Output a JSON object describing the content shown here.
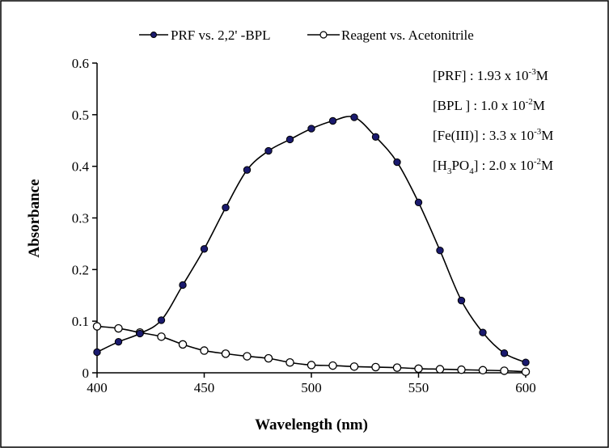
{
  "chart_data": {
    "type": "line",
    "xlabel": "Wavelength (nm)",
    "ylabel": "Absorbance",
    "xlim": [
      400,
      600
    ],
    "ylim": [
      0,
      0.6
    ],
    "x_ticks": [
      "400",
      "450",
      "500",
      "550",
      "600"
    ],
    "y_ticks": [
      "0",
      "0.1",
      "0.2",
      "0.3",
      "0.4",
      "0.5",
      "0.6"
    ],
    "grid": false,
    "legend_position": "top",
    "series": [
      {
        "name": "PRF vs. 2,2' -BPL",
        "marker": "filled-circle",
        "color": "#1a1a6e",
        "x": [
          400,
          410,
          420,
          430,
          440,
          450,
          460,
          470,
          480,
          490,
          500,
          510,
          520,
          530,
          540,
          550,
          560,
          570,
          580,
          590,
          600
        ],
        "y": [
          0.04,
          0.06,
          0.076,
          0.102,
          0.17,
          0.24,
          0.32,
          0.393,
          0.43,
          0.452,
          0.473,
          0.488,
          0.495,
          0.457,
          0.408,
          0.33,
          0.237,
          0.14,
          0.078,
          0.038,
          0.02
        ]
      },
      {
        "name": "Reagent vs. Acetonitrile",
        "marker": "open-circle",
        "color": "#000000",
        "x": [
          400,
          410,
          420,
          430,
          440,
          450,
          460,
          470,
          480,
          490,
          500,
          510,
          520,
          530,
          540,
          550,
          560,
          570,
          580,
          590,
          600
        ],
        "y": [
          0.09,
          0.086,
          0.078,
          0.07,
          0.055,
          0.043,
          0.037,
          0.032,
          0.028,
          0.02,
          0.015,
          0.014,
          0.012,
          0.011,
          0.01,
          0.008,
          0.007,
          0.006,
          0.005,
          0.004,
          0.002
        ]
      }
    ],
    "annotations": [
      {
        "pre": "[PRF] : 1.93 x 10",
        "sup": "-3",
        "post": "M"
      },
      {
        "pre": "[BPL ] : 1.0 x 10",
        "sup": "-2",
        "post": "M"
      },
      {
        "pre": "[Fe(III)] : 3.3 x 10",
        "sup": "-3",
        "post": "M"
      },
      {
        "pre": "[H",
        "sub": "3",
        "mid": "PO",
        "sub2": "4",
        "post1": "] : 2.0 x 10",
        "sup": "-2",
        "post": "M"
      }
    ]
  }
}
